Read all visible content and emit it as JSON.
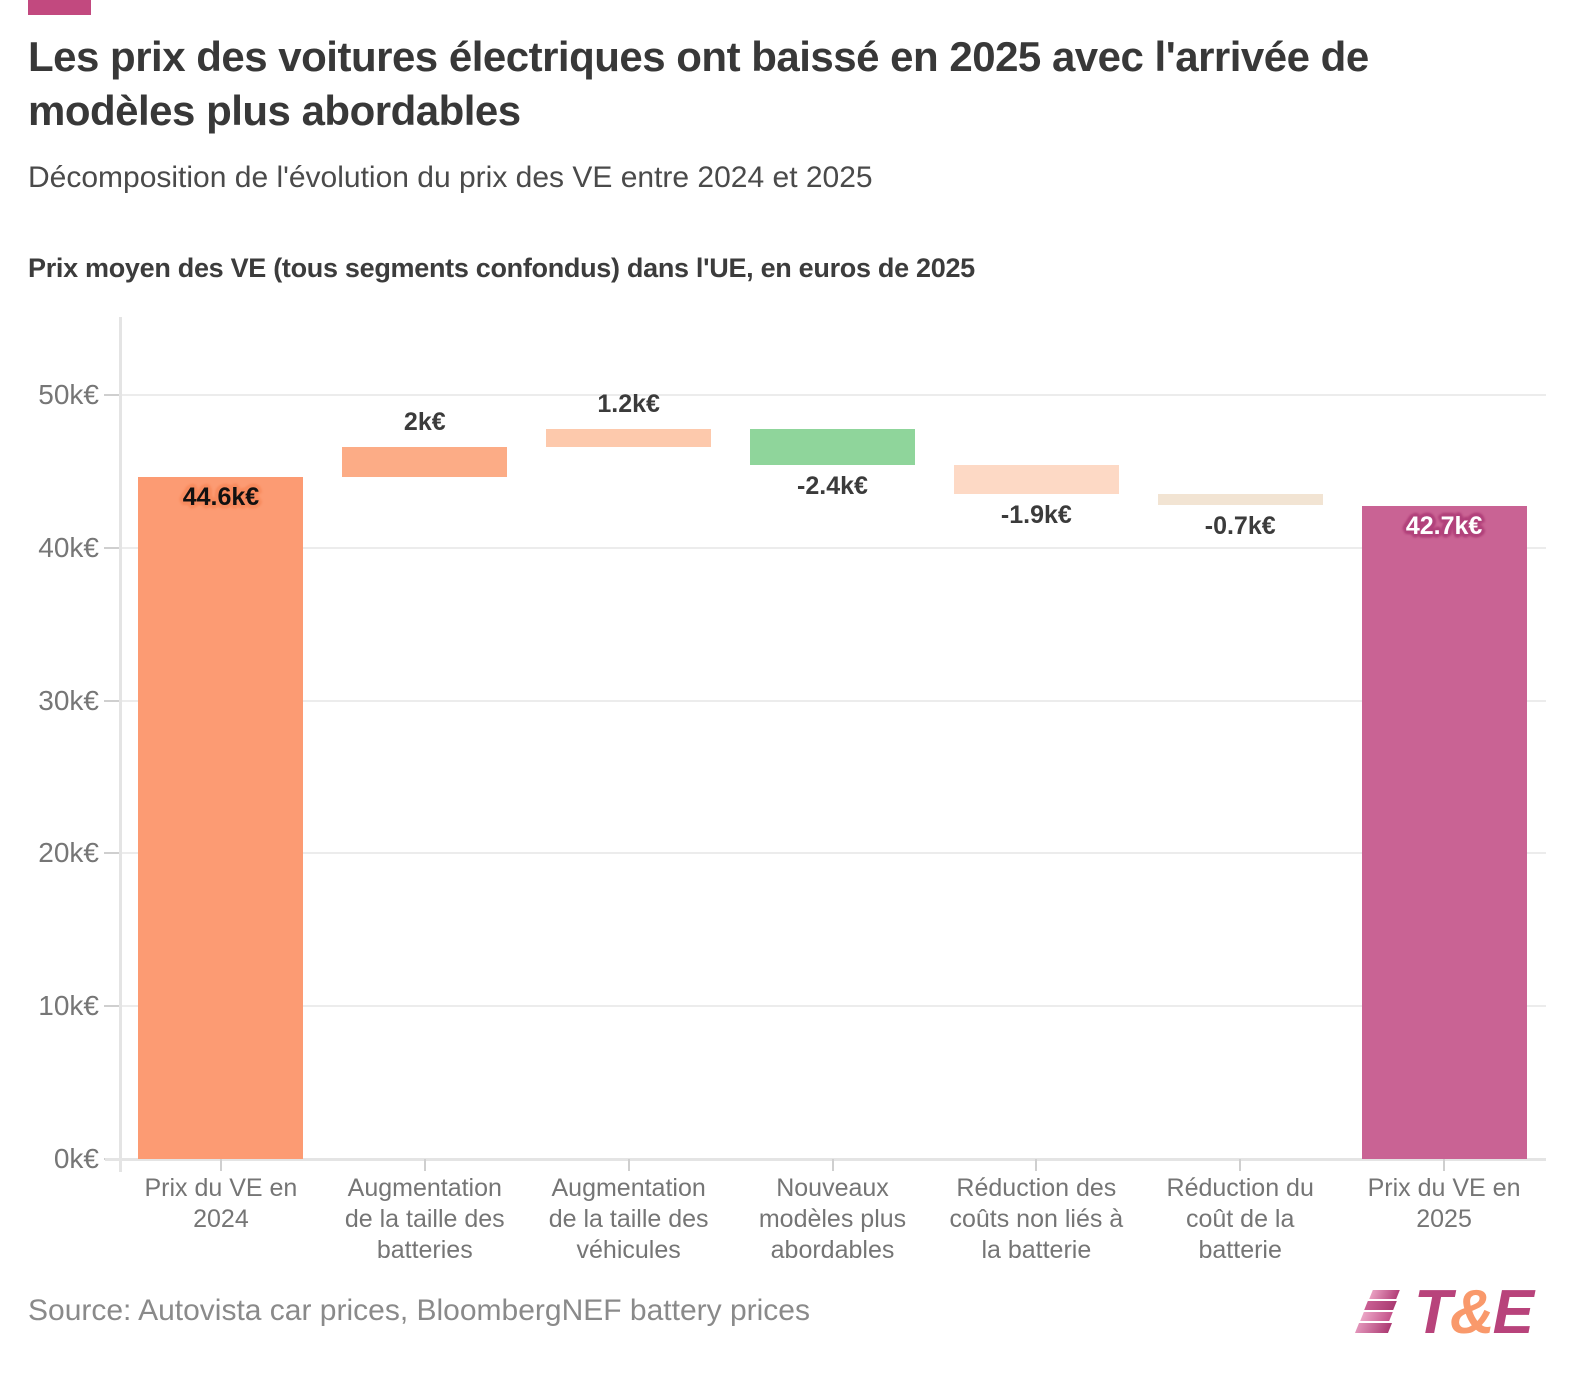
{
  "header": {
    "title": "Les prix des voitures électriques ont baissé en 2025 avec l'arrivée de modèles plus abordables",
    "subtitle": "Décomposition de l'évolution du prix des VE entre 2024 et 2025"
  },
  "chart_data": {
    "type": "bar",
    "subtype": "waterfall",
    "axis_title": "Prix moyen des VE (tous segments confondus) dans l'UE, en euros de 2025",
    "unit": "k€",
    "ylim": [
      0,
      55.1
    ],
    "grid": true,
    "y_ticks": [
      {
        "label": "0k€",
        "value": 0
      },
      {
        "label": "10k€",
        "value": 10
      },
      {
        "label": "20k€",
        "value": 20
      },
      {
        "label": "30k€",
        "value": 30
      },
      {
        "label": "40k€",
        "value": 40
      },
      {
        "label": "50k€",
        "value": 50
      }
    ],
    "categories": [
      "Prix du VE en 2024",
      "Augmentation de la taille des batteries",
      "Augmentation de la taille des véhicules",
      "Nouveaux modèles plus abordables",
      "Réduction des coûts non liés à la batterie",
      "Réduction du coût de la batterie",
      "Prix du VE en 2025"
    ],
    "bars": [
      {
        "category": "Prix du VE en 2024",
        "value": 44.6,
        "start": 0,
        "end": 44.6,
        "label": "44.6k€",
        "color": "#FC9B73",
        "label_placement": "inside-top",
        "label_style": "inside-dark",
        "label_halo": "#f88d61"
      },
      {
        "category": "Augmentation de la taille des batteries",
        "value": 2,
        "start": 44.6,
        "end": 46.6,
        "label": "2k€",
        "color": "#FCAC86",
        "label_placement": "above"
      },
      {
        "category": "Augmentation de la taille des véhicules",
        "value": 1.2,
        "start": 46.6,
        "end": 47.8,
        "label": "1.2k€",
        "color": "#FDC9AC",
        "label_placement": "above"
      },
      {
        "category": "Nouveaux modèles plus abordables",
        "value": -2.4,
        "start": 47.8,
        "end": 45.4,
        "label": "-2.4k€",
        "color": "#8FD59B",
        "label_placement": "below"
      },
      {
        "category": "Réduction des coûts non liés à la batterie",
        "value": -1.9,
        "start": 45.4,
        "end": 43.5,
        "label": "-1.9k€",
        "color": "#FDD9C5",
        "label_placement": "below"
      },
      {
        "category": "Réduction du coût de la batterie",
        "value": -0.7,
        "start": 43.5,
        "end": 42.8,
        "label": "-0.7k€",
        "color": "#F2E4D3",
        "label_placement": "below"
      },
      {
        "category": "Prix du VE en 2025",
        "value": 42.7,
        "start": 0,
        "end": 42.7,
        "label": "42.7k€",
        "color": "#C96394",
        "label_placement": "inside-top",
        "label_style": "inside-light",
        "label_halo": "#b2437c"
      }
    ]
  },
  "footer": {
    "source": "Source: Autovista car prices, BloombergNEF battery prices",
    "logo": {
      "t": "T",
      "amp": "&",
      "e": "E"
    }
  },
  "colors": {
    "brand_mark": "#C2497F",
    "logo_magenta": "#B8437B",
    "logo_orange": "#F9996B",
    "positive": "#FC9B73",
    "negative_highlight": "#8FD59B",
    "total_end": "#C96394"
  }
}
